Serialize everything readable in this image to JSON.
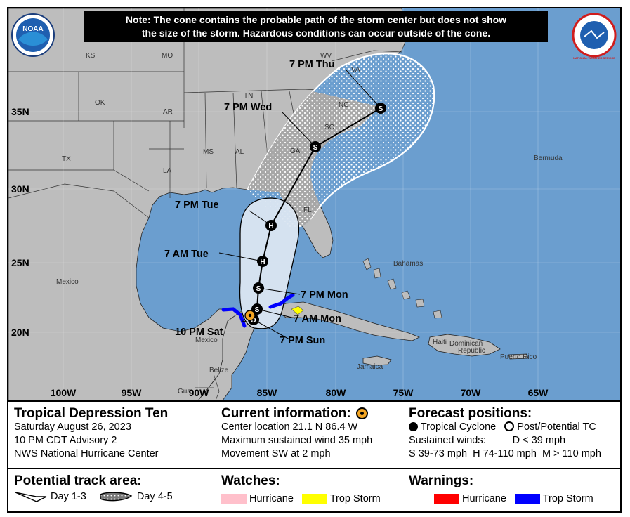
{
  "note": {
    "line1": "Note: The cone contains the probable path of the storm center but does not show",
    "line2": "the size of the storm. Hazardous conditions can occur outside of the cone."
  },
  "logos": {
    "left": "NOAA",
    "right": "NATIONAL WEATHER SERVICE"
  },
  "map_labels": {
    "states": [
      "KS",
      "MO",
      "OK",
      "AR",
      "TX",
      "LA",
      "MS",
      "AL",
      "TN",
      "GA",
      "SC",
      "NC",
      "VA",
      "WV",
      "FL"
    ],
    "places": {
      "mexico1": "Mexico",
      "mexico2": "Mexico",
      "bahamas": "Bahamas",
      "bermuda": "Bermuda",
      "jamaica": "Jamaica",
      "haiti": "Haiti",
      "dominican": "Dominican",
      "republic": "Republic",
      "puertorico": "Puerto Rico",
      "belize": "Belize",
      "guatemala": "Gua"
    }
  },
  "latitudes": [
    "35N",
    "30N",
    "25N",
    "20N"
  ],
  "longitudes": [
    "100W",
    "95W",
    "90W",
    "85W",
    "80W",
    "75W",
    "70W",
    "65W"
  ],
  "track_points": [
    {
      "label": "10 PM Sat",
      "symbol": "current"
    },
    {
      "label": "7 PM Sun",
      "symbol": "D"
    },
    {
      "label": "7 AM Mon",
      "symbol": "S"
    },
    {
      "label": "7 PM Mon",
      "symbol": "S"
    },
    {
      "label": "7 AM Tue",
      "symbol": "H"
    },
    {
      "label": "7 PM Tue",
      "symbol": "H"
    },
    {
      "label": "7 PM Wed",
      "symbol": "S"
    },
    {
      "label": "7 PM Thu",
      "symbol": "S"
    }
  ],
  "storm": {
    "title": "Tropical Depression Ten",
    "date": "Saturday August 26, 2023",
    "advisory": "10 PM CDT Advisory 2",
    "source": "NWS National Hurricane Center"
  },
  "current": {
    "heading": "Current information:",
    "location": "Center location 21.1 N 86.4 W",
    "wind": "Maximum sustained wind 35 mph",
    "movement": "Movement SW at 2 mph"
  },
  "forecast": {
    "heading": "Forecast positions:",
    "tc": "Tropical Cyclone",
    "post": "Post/Potential TC",
    "sustained": "Sustained winds:",
    "d": "D < 39 mph",
    "shm": "S 39-73 mph  H 74-110 mph  M > 110 mph"
  },
  "track_area": {
    "heading": "Potential track area:",
    "day13": "Day 1-3",
    "day45": "Day 4-5"
  },
  "watches": {
    "heading": "Watches:",
    "hurricane": "Hurricane",
    "trop": "Trop Storm",
    "hurricane_color": "#ffc0cb",
    "trop_color": "#ffff00"
  },
  "warnings": {
    "heading": "Warnings:",
    "hurricane": "Hurricane",
    "trop": "Trop Storm",
    "hurricane_color": "#ff0000",
    "trop_color": "#0000ff"
  },
  "colors": {
    "ocean": "#6b9ecf",
    "land": "#bdbdbd",
    "cone13": "#dbe6f1",
    "track": "#000000",
    "current_dot": "#f5a623"
  }
}
